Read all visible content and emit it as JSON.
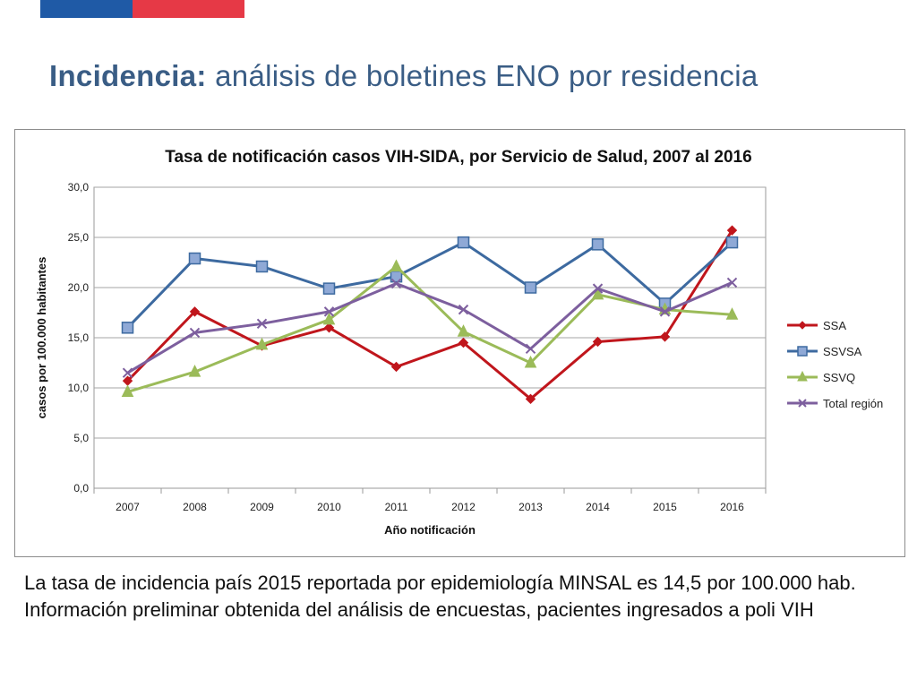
{
  "slide": {
    "title_bold": "Incidencia:",
    "title_rest": " análisis de boletines ENO por residencia",
    "caption": "La tasa de incidencia país  2015 reportada por epidemiología MINSAL es 14,5 por 100.000 hab.  Información preliminar obtenida del análisis de encuestas, pacientes ingresados a poli VIH"
  },
  "colors": {
    "flag_blue": "#1f5aa6",
    "flag_red": "#e63946",
    "title": "#3a5d85"
  },
  "chart_data": {
    "type": "line",
    "title": "Tasa de notificación casos VIH-SIDA, por Servicio de Salud, 2007 al 2016",
    "xlabel": "Año notificación",
    "ylabel": "casos por 100.000 habitantes",
    "categories": [
      "2007",
      "2008",
      "2009",
      "2010",
      "2011",
      "2012",
      "2013",
      "2014",
      "2015",
      "2016"
    ],
    "ylim": [
      0,
      30
    ],
    "yticks": [
      "0,0",
      "5,0",
      "10,0",
      "15,0",
      "20,0",
      "25,0",
      "30,0"
    ],
    "grid": true,
    "legend_position": "right",
    "series": [
      {
        "name": "SSA",
        "color": "#c0161c",
        "marker": "diamond",
        "values": [
          10.7,
          17.6,
          14.2,
          16.0,
          12.1,
          14.5,
          8.9,
          14.6,
          15.1,
          25.7
        ]
      },
      {
        "name": "SSVSA",
        "color": "#3d6aa0",
        "marker": "square",
        "values": [
          16.0,
          22.9,
          22.1,
          19.9,
          21.1,
          24.5,
          20.0,
          24.3,
          18.4,
          24.5
        ]
      },
      {
        "name": "SSVQ",
        "color": "#9bbb59",
        "marker": "triangle",
        "values": [
          9.6,
          11.6,
          14.3,
          16.8,
          22.1,
          15.6,
          12.5,
          19.3,
          17.8,
          17.3
        ]
      },
      {
        "name": "Total región",
        "color": "#7d5f9e",
        "marker": "x",
        "values": [
          11.5,
          15.5,
          16.4,
          17.6,
          20.4,
          17.8,
          13.9,
          19.9,
          17.6,
          20.5
        ]
      }
    ]
  }
}
